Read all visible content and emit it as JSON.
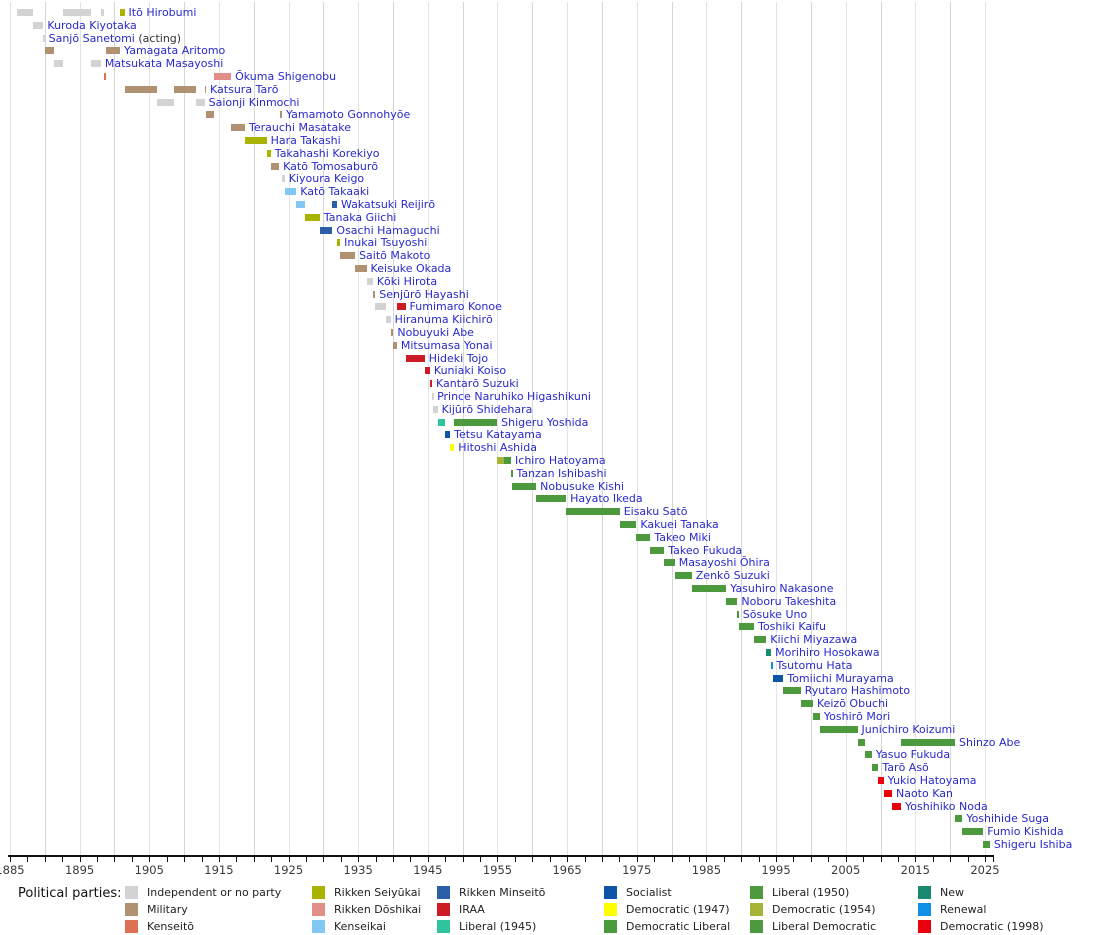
{
  "legend": {
    "title": "Political parties:",
    "columns": [
      [
        "independent",
        "military",
        "kenseito"
      ],
      [
        "seiyukai",
        "doshikai",
        "kenseikai"
      ],
      [
        "minseito",
        "iraa",
        "liberal1945"
      ],
      [
        "socialist",
        "democratic1947",
        "democratic_liberal"
      ],
      [
        "liberal1950",
        "democratic1954",
        "liberal_democratic"
      ],
      [
        "new",
        "renewal",
        "democratic1998"
      ]
    ]
  },
  "chart_data": {
    "type": "bar",
    "variant": "gantt-timeline",
    "legend_position": "bottom",
    "x_axis": {
      "min": 1885,
      "max": 2025.7,
      "tick_labels": [
        1885,
        1895,
        1905,
        1915,
        1925,
        1935,
        1945,
        1955,
        1965,
        1975,
        1985,
        1995,
        2005,
        2015,
        2025
      ],
      "minor_tick_step_years": 2.5,
      "gridline_step_years": 5,
      "grid": true
    },
    "parties": {
      "independent": {
        "label": "Independent or no party",
        "color": "#d3d3d3"
      },
      "military": {
        "label": "Military",
        "color": "#b09272"
      },
      "kenseito": {
        "label": "Kenseitō",
        "color": "#dd7155"
      },
      "seiyukai": {
        "label": "Rikken Seiyūkai",
        "color": "#a8b400"
      },
      "doshikai": {
        "label": "Rikken Dōshikai",
        "color": "#e18d88"
      },
      "kenseikai": {
        "label": "Kenseikai",
        "color": "#82c8f5"
      },
      "minseito": {
        "label": "Rikken Minseitō",
        "color": "#2d5fa9"
      },
      "iraa": {
        "label": "IRAA",
        "color": "#cc1b24"
      },
      "liberal1945": {
        "label": "Liberal (1945)",
        "color": "#2fc49e"
      },
      "socialist": {
        "label": "Socialist",
        "color": "#0f55a7"
      },
      "democratic1947": {
        "label": "Democratic (1947)",
        "color": "#ffff00"
      },
      "democratic_liberal": {
        "label": "Democratic Liberal",
        "color": "#4d9a3e"
      },
      "liberal1950": {
        "label": "Liberal (1950)",
        "color": "#4d9a3e"
      },
      "democratic1954": {
        "label": "Democratic (1954)",
        "color": "#a6b437"
      },
      "liberal_democratic": {
        "label": "Liberal Democratic",
        "color": "#4d9a3e"
      },
      "new": {
        "label": "New",
        "color": "#178a70"
      },
      "renewal": {
        "label": "Renewal",
        "color": "#0f8fe5"
      },
      "democratic1998": {
        "label": "Democratic (1998)",
        "color": "#e8000d"
      }
    },
    "prime_ministers": [
      {
        "name": "Itō Hirobumi",
        "terms": [
          {
            "start": 1885.95,
            "end": 1888.35,
            "party": "independent"
          },
          {
            "start": 1892.6,
            "end": 1896.7,
            "party": "independent"
          },
          {
            "start": 1898.05,
            "end": 1898.5,
            "party": "independent"
          },
          {
            "start": 1900.8,
            "end": 1901.45,
            "party": "seiyukai"
          }
        ]
      },
      {
        "name": "Kuroda Kiyotaka",
        "terms": [
          {
            "start": 1888.35,
            "end": 1889.8,
            "party": "independent"
          }
        ]
      },
      {
        "name": "Sanjō Sanetomi",
        "suffix": " (acting)",
        "terms": [
          {
            "start": 1889.8,
            "end": 1889.97,
            "party": "independent"
          }
        ]
      },
      {
        "name": "Yamagata Aritomo",
        "terms": [
          {
            "start": 1889.97,
            "end": 1891.35,
            "party": "military"
          },
          {
            "start": 1898.85,
            "end": 1900.8,
            "party": "military"
          }
        ]
      },
      {
        "name": "Matsukata Masayoshi",
        "terms": [
          {
            "start": 1891.35,
            "end": 1892.6,
            "party": "independent"
          },
          {
            "start": 1896.7,
            "end": 1898.05,
            "party": "independent"
          }
        ]
      },
      {
        "name": "Ōkuma Shigenobu",
        "terms": [
          {
            "start": 1898.5,
            "end": 1898.85,
            "party": "kenseito"
          },
          {
            "start": 1914.3,
            "end": 1916.75,
            "party": "doshikai"
          }
        ]
      },
      {
        "name": "Katsura Tarō",
        "terms": [
          {
            "start": 1901.45,
            "end": 1906.05,
            "party": "military"
          },
          {
            "start": 1908.55,
            "end": 1911.65,
            "party": "military"
          },
          {
            "start": 1912.95,
            "end": 1913.15,
            "party": "military"
          }
        ]
      },
      {
        "name": "Saionji Kinmochi",
        "terms": [
          {
            "start": 1906.05,
            "end": 1908.55,
            "party": "independent"
          },
          {
            "start": 1911.65,
            "end": 1912.95,
            "party": "independent"
          }
        ]
      },
      {
        "name": "Yamamoto Gonnohyōe",
        "terms": [
          {
            "start": 1913.15,
            "end": 1914.3,
            "party": "military"
          },
          {
            "start": 1923.7,
            "end": 1924.05,
            "party": "military"
          }
        ]
      },
      {
        "name": "Terauchi Masatake",
        "terms": [
          {
            "start": 1916.75,
            "end": 1918.75,
            "party": "military"
          }
        ]
      },
      {
        "name": "Hara Takashi",
        "terms": [
          {
            "start": 1918.75,
            "end": 1921.85,
            "party": "seiyukai"
          }
        ]
      },
      {
        "name": "Takahashi Korekiyo",
        "terms": [
          {
            "start": 1921.85,
            "end": 1922.45,
            "party": "seiyukai"
          }
        ]
      },
      {
        "name": "Katō Tomosaburō",
        "terms": [
          {
            "start": 1922.45,
            "end": 1923.65,
            "party": "military"
          }
        ]
      },
      {
        "name": "Kiyoura Keigo",
        "terms": [
          {
            "start": 1924.05,
            "end": 1924.45,
            "party": "independent"
          }
        ]
      },
      {
        "name": "Katō Takaaki",
        "terms": [
          {
            "start": 1924.45,
            "end": 1926.1,
            "party": "kenseikai"
          }
        ]
      },
      {
        "name": "Wakatsuki Reijirō",
        "terms": [
          {
            "start": 1926.1,
            "end": 1927.3,
            "party": "kenseikai"
          },
          {
            "start": 1931.3,
            "end": 1931.95,
            "party": "minseito"
          }
        ]
      },
      {
        "name": "Tanaka Giichi",
        "terms": [
          {
            "start": 1927.3,
            "end": 1929.5,
            "party": "seiyukai"
          }
        ]
      },
      {
        "name": "Osachi Hamaguchi",
        "terms": [
          {
            "start": 1929.5,
            "end": 1931.3,
            "party": "minseito"
          }
        ]
      },
      {
        "name": "Inukai Tsuyoshi",
        "terms": [
          {
            "start": 1931.95,
            "end": 1932.4,
            "party": "seiyukai"
          }
        ]
      },
      {
        "name": "Saitō Makoto",
        "terms": [
          {
            "start": 1932.4,
            "end": 1934.55,
            "party": "military"
          }
        ]
      },
      {
        "name": "Keisuke Okada",
        "terms": [
          {
            "start": 1934.55,
            "end": 1936.2,
            "party": "military"
          }
        ]
      },
      {
        "name": "Kōki Hirota",
        "terms": [
          {
            "start": 1936.2,
            "end": 1937.1,
            "party": "independent"
          }
        ]
      },
      {
        "name": "Senjūrō Hayashi",
        "terms": [
          {
            "start": 1937.1,
            "end": 1937.45,
            "party": "military"
          }
        ]
      },
      {
        "name": "Fumimaro Konoe",
        "terms": [
          {
            "start": 1937.45,
            "end": 1939.0,
            "party": "independent"
          },
          {
            "start": 1940.55,
            "end": 1941.8,
            "party": "iraa"
          }
        ]
      },
      {
        "name": "Hiranuma Kiichirō",
        "terms": [
          {
            "start": 1939.0,
            "end": 1939.65,
            "party": "independent"
          }
        ]
      },
      {
        "name": "Nobuyuki Abe",
        "terms": [
          {
            "start": 1939.65,
            "end": 1940.05,
            "party": "military"
          }
        ]
      },
      {
        "name": "Mitsumasa Yonai",
        "terms": [
          {
            "start": 1940.05,
            "end": 1940.55,
            "party": "military"
          }
        ]
      },
      {
        "name": "Hideki Tojo",
        "terms": [
          {
            "start": 1941.8,
            "end": 1944.55,
            "party": "iraa"
          }
        ]
      },
      {
        "name": "Kuniaki Koiso",
        "terms": [
          {
            "start": 1944.55,
            "end": 1945.3,
            "party": "iraa"
          }
        ]
      },
      {
        "name": "Kantarō Suzuki",
        "terms": [
          {
            "start": 1945.3,
            "end": 1945.6,
            "party": "iraa"
          }
        ]
      },
      {
        "name": "Prince Naruhiko Higashikuni",
        "terms": [
          {
            "start": 1945.6,
            "end": 1945.75,
            "party": "independent"
          }
        ]
      },
      {
        "name": "Kijūrō Shidehara",
        "terms": [
          {
            "start": 1945.75,
            "end": 1946.4,
            "party": "independent"
          }
        ]
      },
      {
        "name": "Shigeru Yoshida",
        "terms": [
          {
            "start": 1946.4,
            "end": 1947.4,
            "party": "liberal1945"
          },
          {
            "start": 1948.8,
            "end": 1950.2,
            "party": "democratic_liberal"
          },
          {
            "start": 1950.2,
            "end": 1954.95,
            "party": "liberal1950"
          }
        ]
      },
      {
        "name": "Tetsu Katayama",
        "terms": [
          {
            "start": 1947.4,
            "end": 1948.2,
            "party": "socialist"
          }
        ]
      },
      {
        "name": "Hitoshi Ashida",
        "terms": [
          {
            "start": 1948.2,
            "end": 1948.8,
            "party": "democratic1947"
          }
        ]
      },
      {
        "name": "Ichiro Hatoyama",
        "terms": [
          {
            "start": 1954.95,
            "end": 1955.9,
            "party": "democratic1954"
          },
          {
            "start": 1955.9,
            "end": 1956.95,
            "party": "liberal_democratic"
          }
        ]
      },
      {
        "name": "Tanzan Ishibashi",
        "terms": [
          {
            "start": 1956.95,
            "end": 1957.15,
            "party": "liberal_democratic"
          }
        ]
      },
      {
        "name": "Nobusuke Kishi",
        "terms": [
          {
            "start": 1957.15,
            "end": 1960.55,
            "party": "liberal_democratic"
          }
        ]
      },
      {
        "name": "Hayato Ikeda",
        "terms": [
          {
            "start": 1960.55,
            "end": 1964.85,
            "party": "liberal_democratic"
          }
        ]
      },
      {
        "name": "Eisaku Satō",
        "terms": [
          {
            "start": 1964.85,
            "end": 1972.55,
            "party": "liberal_democratic"
          }
        ]
      },
      {
        "name": "Kakuei Tanaka",
        "terms": [
          {
            "start": 1972.55,
            "end": 1974.95,
            "party": "liberal_democratic"
          }
        ]
      },
      {
        "name": "Takeo Miki",
        "terms": [
          {
            "start": 1974.95,
            "end": 1976.95,
            "party": "liberal_democratic"
          }
        ]
      },
      {
        "name": "Takeo Fukuda",
        "terms": [
          {
            "start": 1976.95,
            "end": 1978.95,
            "party": "liberal_democratic"
          }
        ]
      },
      {
        "name": "Masayoshi Ōhira",
        "terms": [
          {
            "start": 1978.95,
            "end": 1980.45,
            "party": "liberal_democratic"
          }
        ]
      },
      {
        "name": "Zenkō Suzuki",
        "terms": [
          {
            "start": 1980.55,
            "end": 1982.9,
            "party": "liberal_democratic"
          }
        ]
      },
      {
        "name": "Yasuhiro Nakasone",
        "terms": [
          {
            "start": 1982.9,
            "end": 1987.85,
            "party": "liberal_democratic"
          }
        ]
      },
      {
        "name": "Noboru Takeshita",
        "terms": [
          {
            "start": 1987.85,
            "end": 1989.45,
            "party": "liberal_democratic"
          }
        ]
      },
      {
        "name": "Sōsuke Uno",
        "terms": [
          {
            "start": 1989.45,
            "end": 1989.65,
            "party": "liberal_democratic"
          }
        ]
      },
      {
        "name": "Toshiki Kaifu",
        "terms": [
          {
            "start": 1989.65,
            "end": 1991.85,
            "party": "liberal_democratic"
          }
        ]
      },
      {
        "name": "Kiichi Miyazawa",
        "terms": [
          {
            "start": 1991.85,
            "end": 1993.6,
            "party": "liberal_democratic"
          }
        ]
      },
      {
        "name": "Morihiro Hosokawa",
        "terms": [
          {
            "start": 1993.6,
            "end": 1994.3,
            "party": "new"
          }
        ]
      },
      {
        "name": "Tsutomu Hata",
        "terms": [
          {
            "start": 1994.3,
            "end": 1994.5,
            "party": "renewal"
          }
        ]
      },
      {
        "name": "Tomiichi Murayama",
        "terms": [
          {
            "start": 1994.5,
            "end": 1996.05,
            "party": "socialist"
          }
        ]
      },
      {
        "name": "Ryutaro Hashimoto",
        "terms": [
          {
            "start": 1996.05,
            "end": 1998.55,
            "party": "liberal_democratic"
          }
        ]
      },
      {
        "name": "Keizō Obuchi",
        "terms": [
          {
            "start": 1998.55,
            "end": 2000.3,
            "party": "liberal_democratic"
          }
        ]
      },
      {
        "name": "Yoshirō Mori",
        "terms": [
          {
            "start": 2000.3,
            "end": 2001.3,
            "party": "liberal_democratic"
          }
        ]
      },
      {
        "name": "Junichiro Koizumi",
        "terms": [
          {
            "start": 2001.3,
            "end": 2006.7,
            "party": "liberal_democratic"
          }
        ]
      },
      {
        "name": "Shinzo Abe",
        "terms": [
          {
            "start": 2006.7,
            "end": 2007.75,
            "party": "liberal_democratic"
          },
          {
            "start": 2012.95,
            "end": 2020.7,
            "party": "liberal_democratic"
          }
        ]
      },
      {
        "name": "Yasuo Fukuda",
        "terms": [
          {
            "start": 2007.75,
            "end": 2008.75,
            "party": "liberal_democratic"
          }
        ]
      },
      {
        "name": "Tarō Asō",
        "terms": [
          {
            "start": 2008.75,
            "end": 2009.7,
            "party": "liberal_democratic"
          }
        ]
      },
      {
        "name": "Yukio Hatoyama",
        "terms": [
          {
            "start": 2009.7,
            "end": 2010.45,
            "party": "democratic1998"
          }
        ]
      },
      {
        "name": "Naoto Kan",
        "terms": [
          {
            "start": 2010.45,
            "end": 2011.65,
            "party": "democratic1998"
          }
        ]
      },
      {
        "name": "Yoshihiko Noda",
        "terms": [
          {
            "start": 2011.65,
            "end": 2012.95,
            "party": "democratic1998"
          }
        ]
      },
      {
        "name": "Yoshihide Suga",
        "terms": [
          {
            "start": 2020.7,
            "end": 2021.75,
            "party": "liberal_democratic"
          }
        ]
      },
      {
        "name": "Fumio Kishida",
        "terms": [
          {
            "start": 2021.75,
            "end": 2024.75,
            "party": "liberal_democratic"
          }
        ]
      },
      {
        "name": "Shigeru Ishiba",
        "terms": [
          {
            "start": 2024.75,
            "end": 2025.7,
            "party": "liberal_democratic"
          }
        ]
      }
    ]
  }
}
